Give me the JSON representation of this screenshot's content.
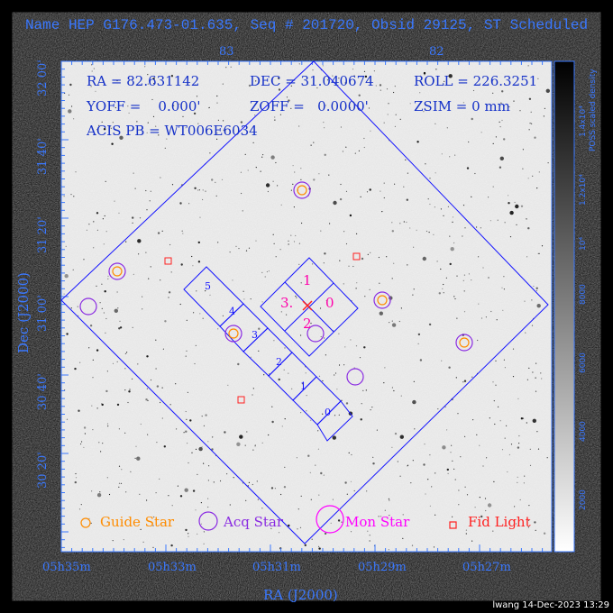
{
  "title": "Name HEP G176.473-01.635, Seq # 201720, Obsid 29125, ST Scheduled",
  "info": {
    "ra": "RA = 82.631142",
    "dec": "DEC = 31.040674",
    "roll": "ROLL = 226.3251",
    "yoff": "YOFF =    0.000'",
    "zoff": "ZOFF =   0.0000'",
    "zsim": "ZSIM = 0 mm",
    "acis_pb": "ACIS PB = WT006E6034"
  },
  "axes": {
    "xlabel": "RA (J2000)",
    "ylabel": "Dec (J2000)",
    "x_ticks": [
      "05h35m",
      "05h33m",
      "05h31m",
      "05h29m",
      "05h27m"
    ],
    "top_ticks": [
      "83",
      "82"
    ],
    "y_ticks": [
      "30 20'",
      "30 40'",
      "31 00'",
      "31 20'",
      "31 40'",
      "32 00'"
    ]
  },
  "colorbar": {
    "label": "POSS scaled density",
    "ticks": [
      "2000",
      "4000",
      "6000",
      "8000",
      "10⁴",
      "1.2x10⁴",
      "1.4x10⁴"
    ]
  },
  "chip_labels": [
    "0",
    "1",
    "2",
    "3",
    "4",
    "5"
  ],
  "aimpoint_labels": [
    "1",
    "3.",
    "0",
    "2"
  ],
  "legend": {
    "guide": "Guide Star",
    "acq": "Acq Star",
    "mon": "Mon Star",
    "fid": "Fid Light"
  },
  "colors": {
    "guide": "#ff8c00",
    "acq": "#8a2be2",
    "mon": "#ff00ff",
    "fid": "#ff2020",
    "fov": "#1414ff",
    "axis": "#3a78ff"
  },
  "footer": "lwang 14-Dec-2023 13:29"
}
